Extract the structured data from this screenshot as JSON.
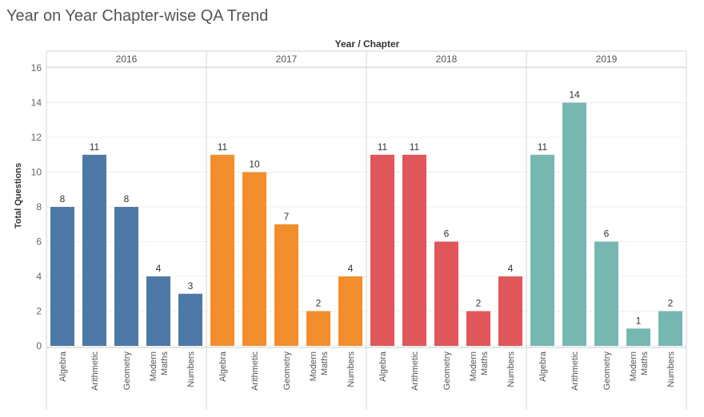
{
  "title": "Year on Year Chapter-wise QA Trend",
  "chart_data": {
    "type": "bar",
    "title": "Year on Year Chapter-wise QA Trend",
    "header_label": "Year / Chapter",
    "ylabel": "Total Questions",
    "ylim": [
      0,
      16
    ],
    "yticks": [
      0,
      2,
      4,
      6,
      8,
      10,
      12,
      14,
      16
    ],
    "grid": true,
    "categories": [
      "Algebra",
      "Arithmetic",
      "Geometry",
      "Modern Maths",
      "Numbers"
    ],
    "category_lines": [
      [
        "Algebra"
      ],
      [
        "Arithmetic"
      ],
      [
        "Geometry"
      ],
      [
        "Modern",
        "Maths"
      ],
      [
        "Numbers"
      ]
    ],
    "series": [
      {
        "name": "2016",
        "color": "#4e79a7",
        "values": [
          8,
          11,
          8,
          4,
          3
        ]
      },
      {
        "name": "2017",
        "color": "#f28e2b",
        "values": [
          11,
          10,
          7,
          2,
          4
        ]
      },
      {
        "name": "2018",
        "color": "#e15759",
        "values": [
          11,
          11,
          6,
          2,
          4
        ]
      },
      {
        "name": "2019",
        "color": "#76b7b2",
        "values": [
          11,
          14,
          6,
          1,
          2
        ]
      }
    ]
  }
}
